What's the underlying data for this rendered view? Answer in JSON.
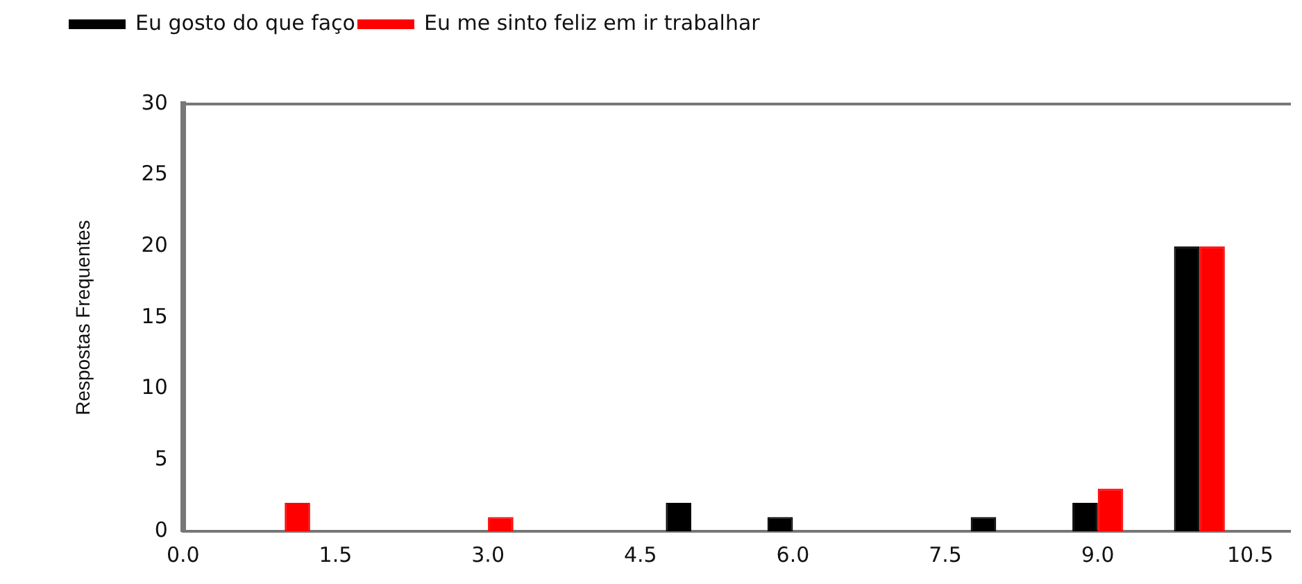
{
  "chart_data": {
    "type": "bar",
    "ylabel": "Respostas Frequentes",
    "x": [
      1,
      2,
      3,
      4,
      5,
      6,
      7,
      8,
      9,
      10
    ],
    "series": [
      {
        "name": "Eu gosto do que faço",
        "color": "#000000",
        "values": [
          0,
          0,
          0,
          0,
          2,
          1,
          0,
          1,
          2,
          20
        ]
      },
      {
        "name": "Eu me sinto feliz em ir trabalhar",
        "color": "#ff0000",
        "values": [
          2,
          0,
          1,
          0,
          0,
          0,
          0,
          0,
          3,
          20
        ]
      }
    ],
    "xlim": [
      0,
      10.9
    ],
    "xticks": [
      {
        "value": 0,
        "label": "0.0"
      },
      1.5,
      {
        "value": 3,
        "label": "3.0"
      },
      4.5,
      {
        "value": 6,
        "label": "6.0"
      },
      7.5,
      {
        "value": 9,
        "label": "9.0"
      },
      10.5
    ],
    "ylim": [
      0,
      30
    ],
    "yticks": [
      0,
      5,
      10,
      15,
      20,
      25,
      30
    ],
    "grid": false,
    "legend": "top left"
  }
}
